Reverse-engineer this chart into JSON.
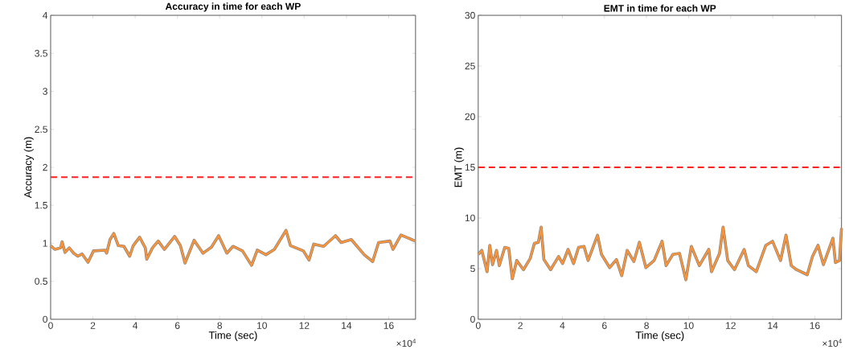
{
  "chart_data": [
    {
      "type": "line",
      "title": "Accuracy in time for each WP",
      "xlabel": "Time (sec)",
      "ylabel": "Accuracy (m)",
      "annotations": [
        "×10$^{4}$"
      ],
      "xlim": [
        0,
        17.27
      ],
      "ylim": [
        0,
        4
      ],
      "xticks": [
        0,
        2,
        4,
        6,
        8,
        10,
        12,
        14,
        16
      ],
      "yticks": [
        0,
        0.5,
        1,
        1.5,
        2,
        2.5,
        3,
        3.5,
        4
      ],
      "grid": false,
      "marker": "none",
      "line_style": "solid",
      "ref_lines": [
        {
          "axis": "y",
          "value": 1.87,
          "color": "#ff2020",
          "line_style": "dashed"
        }
      ],
      "x": [
        0,
        0.2,
        0.47,
        0.54,
        0.68,
        0.88,
        1.09,
        1.29,
        1.49,
        1.77,
        2.03,
        2.58,
        2.65,
        2.81,
        2.99,
        3.2,
        3.47,
        3.74,
        3.91,
        4.21,
        4.48,
        4.55,
        4.82,
        5.09,
        5.38,
        5.87,
        6.14,
        6.36,
        6.79,
        7.21,
        7.61,
        7.95,
        8.34,
        8.63,
        9.08,
        9.51,
        9.78,
        10.19,
        10.59,
        11.14,
        11.35,
        11.96,
        12.23,
        12.45,
        12.92,
        13.48,
        13.75,
        14.23,
        14.84,
        15.24,
        15.52,
        16.06,
        16.2,
        16.58,
        17.25
      ],
      "series": [
        {
          "color": "#f7933a",
          "values": [
            0.97,
            0.92,
            0.94,
            1.02,
            0.88,
            0.94,
            0.87,
            0.83,
            0.86,
            0.75,
            0.9,
            0.91,
            0.87,
            1.05,
            1.13,
            0.97,
            0.96,
            0.83,
            0.97,
            1.08,
            0.94,
            0.79,
            0.94,
            1.03,
            0.92,
            1.09,
            0.97,
            0.74,
            1.04,
            0.87,
            0.95,
            1.1,
            0.87,
            0.96,
            0.9,
            0.71,
            0.91,
            0.85,
            0.92,
            1.17,
            0.97,
            0.9,
            0.78,
            0.99,
            0.96,
            1.1,
            1.01,
            1.05,
            0.85,
            0.76,
            1.01,
            1.03,
            0.92,
            1.11,
            1.03
          ]
        }
      ]
    },
    {
      "type": "line",
      "title": "EMT in time for each WP",
      "xlabel": "Time (sec)",
      "ylabel": "EMT (m)",
      "annotations": [
        "×10$^{4}$"
      ],
      "xlim": [
        0,
        17.27
      ],
      "ylim": [
        0,
        30
      ],
      "xticks": [
        0,
        2,
        4,
        6,
        8,
        10,
        12,
        14,
        16
      ],
      "yticks": [
        0,
        5,
        10,
        15,
        20,
        25,
        30
      ],
      "grid": false,
      "marker": "none",
      "line_style": "solid",
      "ref_lines": [
        {
          "axis": "y",
          "value": 15,
          "color": "#ff2020",
          "line_style": "dashed"
        }
      ],
      "x": [
        0,
        0.17,
        0.42,
        0.55,
        0.68,
        0.87,
        1.0,
        1.26,
        1.45,
        1.62,
        1.83,
        2.15,
        2.47,
        2.67,
        2.86,
        2.99,
        3.12,
        3.44,
        3.82,
        4.01,
        4.27,
        4.53,
        4.77,
        5.03,
        5.22,
        5.67,
        5.86,
        6.25,
        6.57,
        6.82,
        7.08,
        7.4,
        7.66,
        7.97,
        8.36,
        8.74,
        8.93,
        9.25,
        9.57,
        9.87,
        10.13,
        10.51,
        10.96,
        11.09,
        11.47,
        11.64,
        11.86,
        12.18,
        12.64,
        12.84,
        13.22,
        13.67,
        13.99,
        14.37,
        14.63,
        14.88,
        15.13,
        15.64,
        15.89,
        16.15,
        16.41,
        16.86,
        16.98,
        17.17,
        17.27
      ],
      "series": [
        {
          "color": "#f7933a",
          "values": [
            6.4,
            6.8,
            4.7,
            7.3,
            5.4,
            6.8,
            5.3,
            7.1,
            7.0,
            4.0,
            5.8,
            4.9,
            6.0,
            7.5,
            7.6,
            9.1,
            5.9,
            4.9,
            6.2,
            5.5,
            6.9,
            5.5,
            7.1,
            7.2,
            5.8,
            8.3,
            6.4,
            5.1,
            5.9,
            4.3,
            6.8,
            5.7,
            7.6,
            5.1,
            5.8,
            7.7,
            5.3,
            6.4,
            6.5,
            3.9,
            7.2,
            5.3,
            6.9,
            4.7,
            6.5,
            9.1,
            5.8,
            4.9,
            6.9,
            5.3,
            4.7,
            7.3,
            7.7,
            5.8,
            8.3,
            5.3,
            4.9,
            4.4,
            6.2,
            7.3,
            5.4,
            8.0,
            5.6,
            5.8,
            9.0
          ]
        }
      ]
    }
  ]
}
